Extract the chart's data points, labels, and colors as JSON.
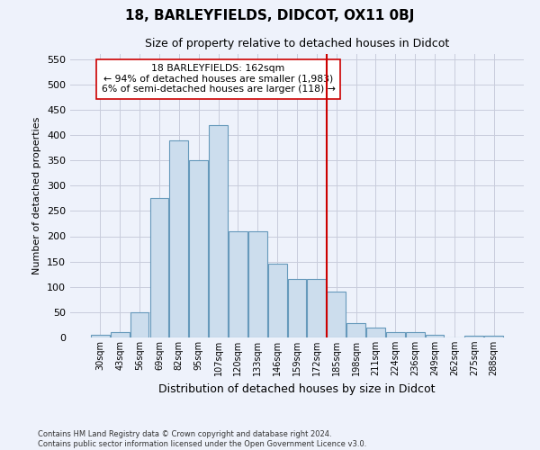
{
  "title": "18, BARLEYFIELDS, DIDCOT, OX11 0BJ",
  "subtitle": "Size of property relative to detached houses in Didcot",
  "xlabel": "Distribution of detached houses by size in Didcot",
  "ylabel": "Number of detached properties",
  "bar_labels": [
    "30sqm",
    "43sqm",
    "56sqm",
    "69sqm",
    "82sqm",
    "95sqm",
    "107sqm",
    "120sqm",
    "133sqm",
    "146sqm",
    "159sqm",
    "172sqm",
    "185sqm",
    "198sqm",
    "211sqm",
    "224sqm",
    "236sqm",
    "249sqm",
    "262sqm",
    "275sqm",
    "288sqm"
  ],
  "bar_values": [
    5,
    10,
    50,
    275,
    390,
    350,
    420,
    210,
    210,
    145,
    115,
    115,
    90,
    28,
    20,
    10,
    10,
    5,
    0,
    3,
    3
  ],
  "bar_color": "#ccdded",
  "bar_edge_color": "#6699bb",
  "vline_x": 11.5,
  "vline_color": "#cc0000",
  "annotation_text": "18 BARLEYFIELDS: 162sqm\n← 94% of detached houses are smaller (1,983)\n6% of semi-detached houses are larger (118) →",
  "annotation_box_color": "#ffffff",
  "annotation_box_edge": "#cc0000",
  "ylim": [
    0,
    560
  ],
  "yticks": [
    0,
    50,
    100,
    150,
    200,
    250,
    300,
    350,
    400,
    450,
    500,
    550
  ],
  "footer": "Contains HM Land Registry data © Crown copyright and database right 2024.\nContains public sector information licensed under the Open Government Licence v3.0.",
  "bg_color": "#eef2fb",
  "grid_color": "#c8ccdc"
}
